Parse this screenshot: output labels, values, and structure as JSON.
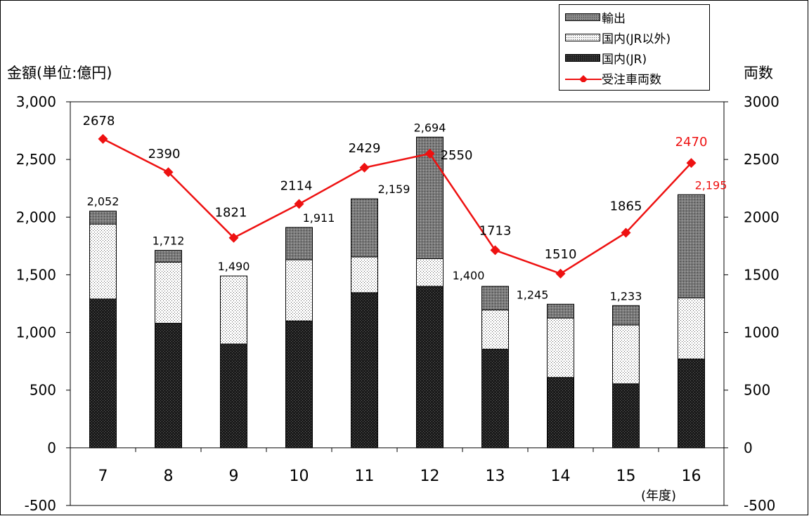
{
  "chart_data": {
    "type": "bar",
    "categories": [
      "7",
      "8",
      "9",
      "10",
      "11",
      "12",
      "13",
      "14",
      "15",
      "16"
    ],
    "unit_label": "(年度)",
    "y_left_label": "金額(単位:億円)",
    "y_right_label": "両数",
    "ylim_left": [
      -500,
      3000
    ],
    "ylim_right": [
      -500,
      3000
    ],
    "y_left_ticks": [
      "-500",
      "0",
      "500",
      "1,000",
      "1,500",
      "2,000",
      "2,500",
      "3,000"
    ],
    "y_right_ticks": [
      "-500",
      "0",
      "500",
      "1000",
      "1500",
      "2000",
      "2500",
      "3000"
    ],
    "stacked_series": [
      {
        "name": "国内(JR)",
        "color": "#222222",
        "values": [
          1290,
          1080,
          900,
          1100,
          1345,
          1400,
          855,
          610,
          555,
          770
        ]
      },
      {
        "name": "国内(JR以外)",
        "color": "#f2f2f2",
        "values": [
          650,
          530,
          590,
          530,
          310,
          240,
          340,
          515,
          510,
          530
        ]
      },
      {
        "name": "輸出",
        "color": "#8a8a8a",
        "values": [
          112,
          102,
          0,
          281,
          504,
          1054,
          205,
          120,
          168,
          895
        ]
      }
    ],
    "bar_totals": [
      "2,052",
      "1,712",
      "1,490",
      "1,911",
      "2,159",
      "2,694",
      "1,400",
      "1,245",
      "1,233",
      "2,195"
    ],
    "line_series": {
      "name": "受注車両数",
      "color": "#ee1111",
      "values": [
        2678,
        2390,
        1821,
        2114,
        2429,
        2550,
        1713,
        1510,
        1865,
        2470
      ],
      "labels": [
        "2678",
        "2390",
        "1821",
        "2114",
        "2429",
        "2550",
        "1713",
        "1510",
        "1865",
        "2470"
      ]
    },
    "legend": [
      "輸出",
      "国内(JR以外)",
      "国内(JR)",
      "受注車両数"
    ],
    "highlight_color": "#ee1111"
  }
}
